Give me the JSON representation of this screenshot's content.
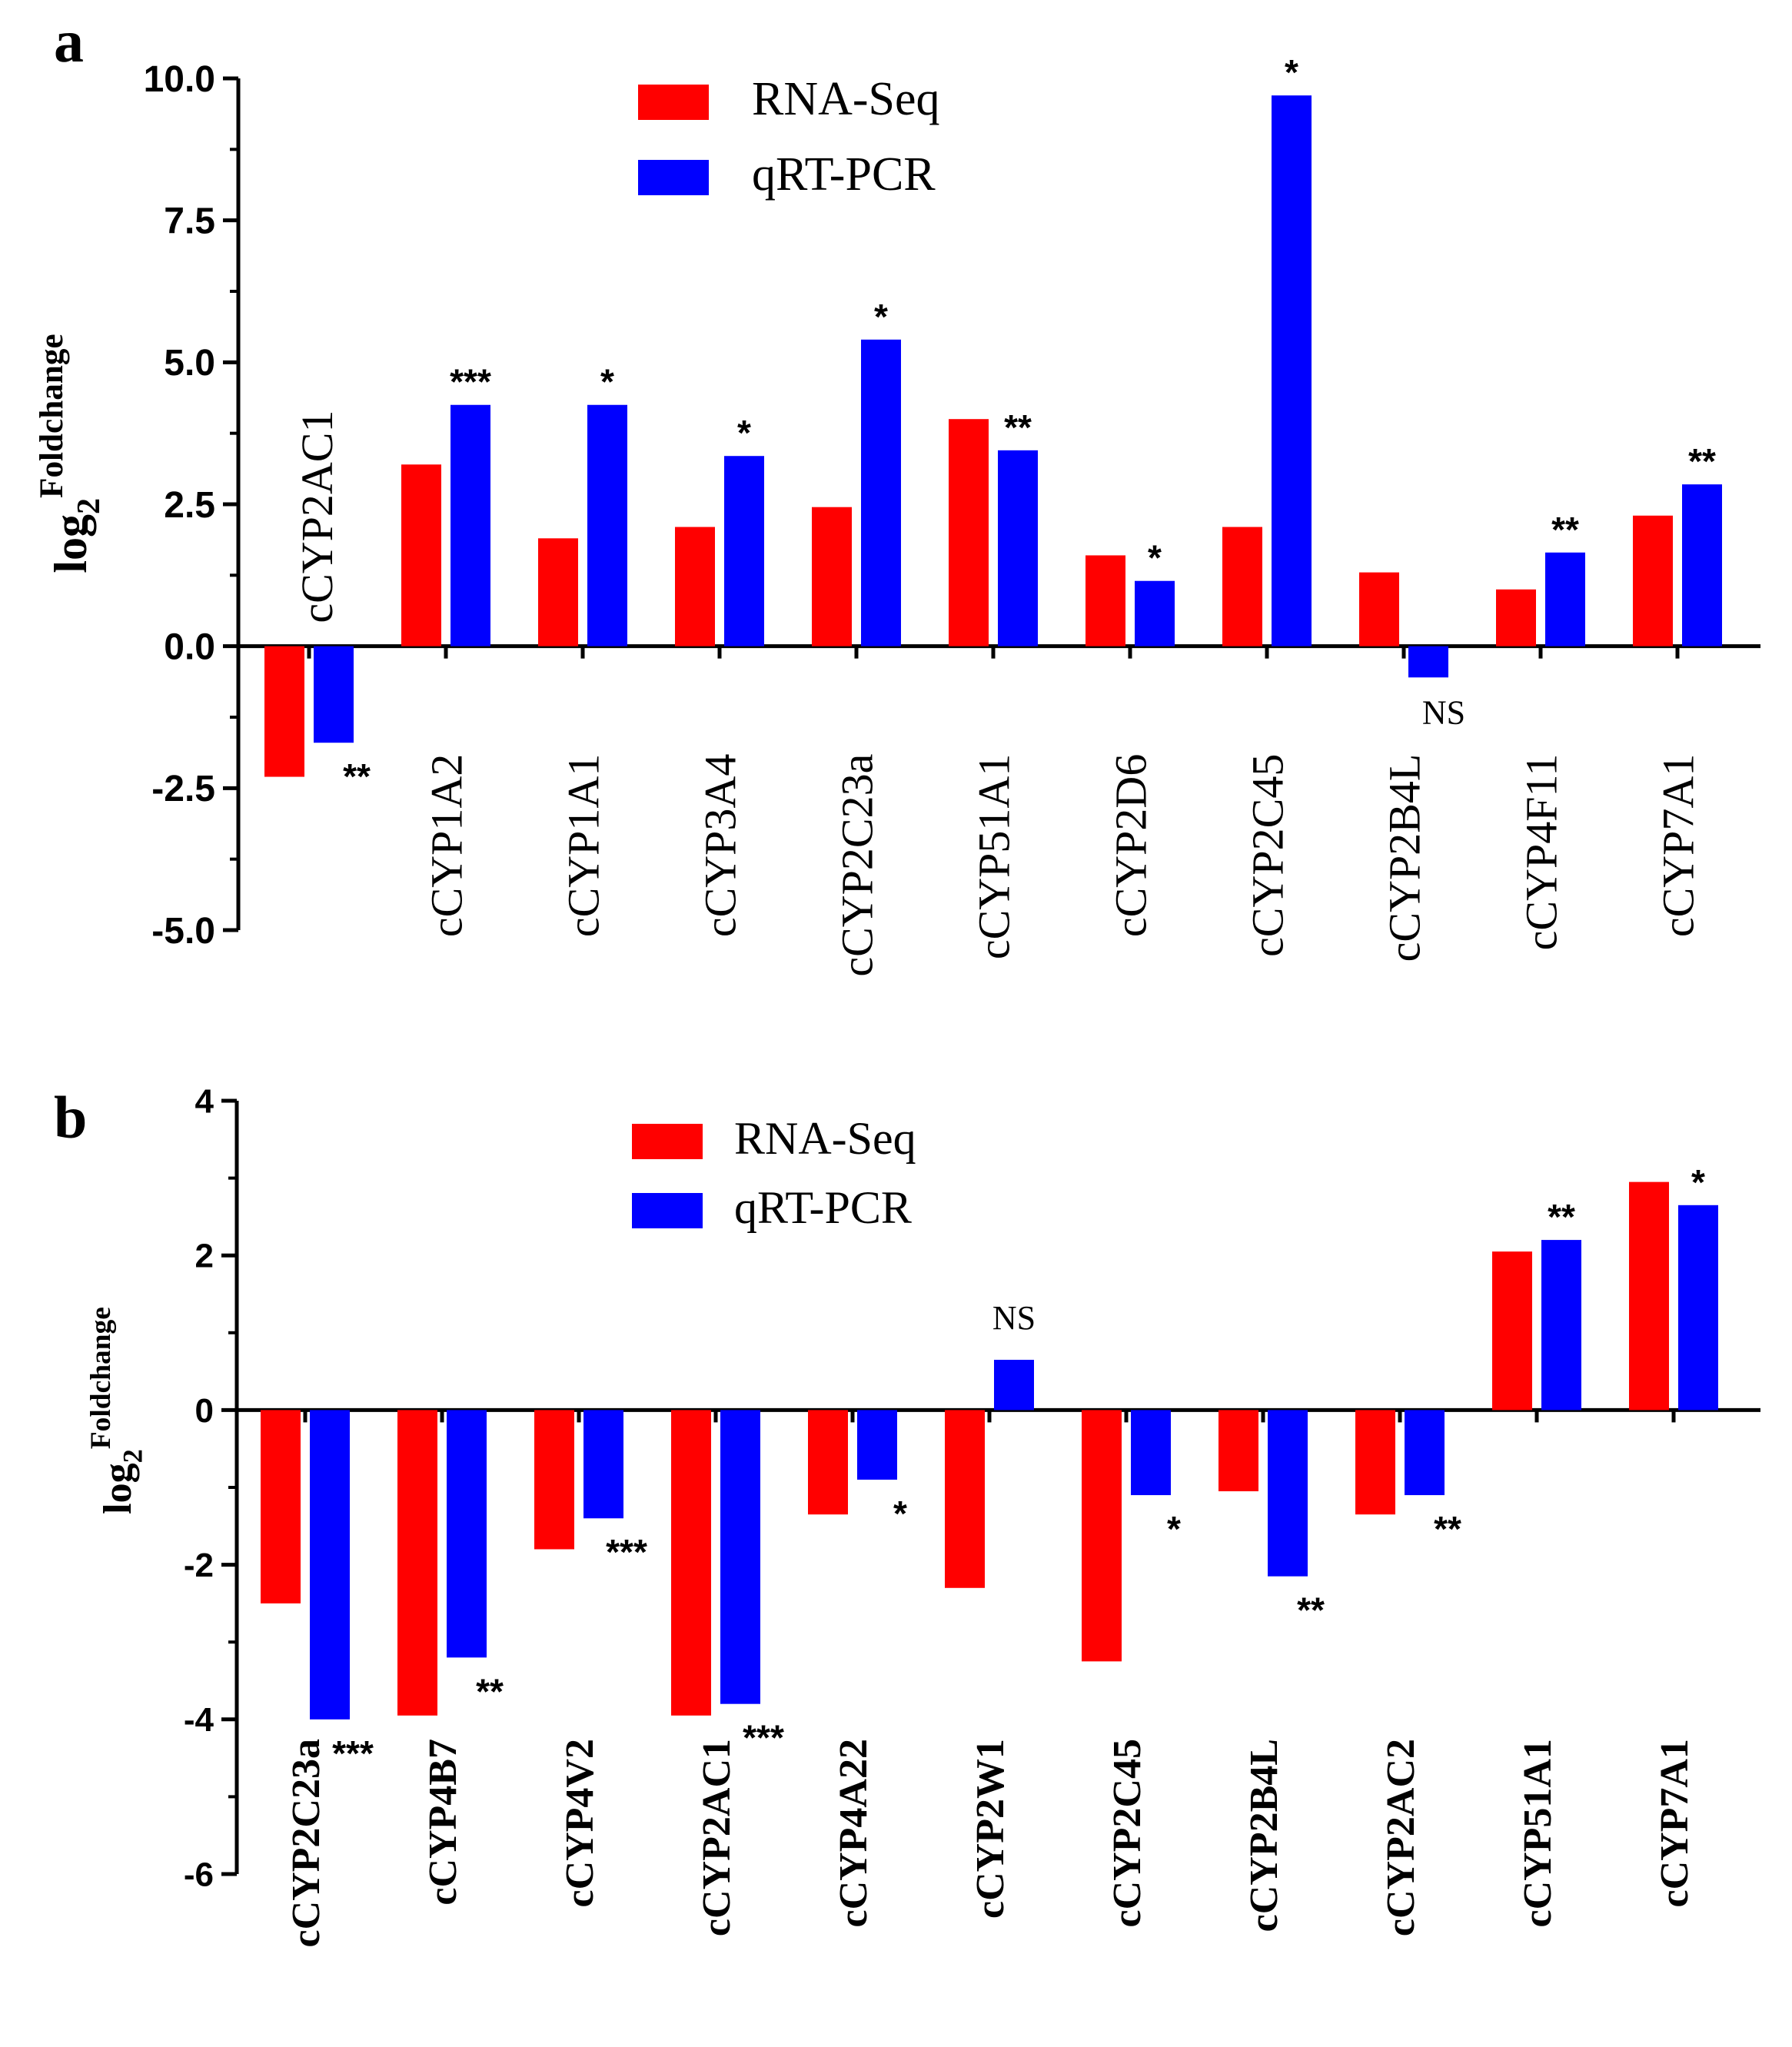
{
  "chart_data": [
    {
      "type": "bar",
      "panel": "a",
      "ylabel": "log2",
      "ylabel_sup": "Foldchange",
      "ylabel_sub": "2",
      "ylim": [
        -5.0,
        10.0
      ],
      "yticks": [
        -5.0,
        -2.5,
        0.0,
        2.5,
        5.0,
        7.5,
        10.0
      ],
      "ytick_labels": [
        "-5.0",
        "-2.5",
        "0.0",
        "2.5",
        "5.0",
        "7.5",
        "10.0"
      ],
      "categories": [
        "cCYP2AC1",
        "cCYP1A2",
        "cCYP1A1",
        "cCYP3A4",
        "cCYP2C23a",
        "cCYP51A1",
        "cCYP2D6",
        "cCYP2C45",
        "cCYP2B4L",
        "cCYP4F11",
        "cCYP7A1"
      ],
      "series": [
        {
          "name": "RNA-Seq",
          "color": "#ff0000",
          "values": [
            -2.3,
            3.2,
            1.9,
            2.1,
            2.45,
            4.0,
            1.6,
            2.1,
            1.3,
            1.0,
            2.3
          ]
        },
        {
          "name": "qRT-PCR",
          "color": "#0000ff",
          "values": [
            -1.7,
            4.25,
            4.25,
            3.35,
            5.4,
            3.45,
            1.15,
            9.7,
            -0.55,
            1.65,
            2.85
          ]
        }
      ],
      "significance": [
        "**",
        "***",
        "*",
        "*",
        "*",
        "**",
        "*",
        "*",
        "NS",
        "**",
        "**"
      ],
      "legend": [
        "RNA-Seq",
        "qRT-PCR"
      ],
      "legend_position": "top-center",
      "category_label_font": "serif",
      "grid": false
    },
    {
      "type": "bar",
      "panel": "b",
      "ylabel": "log2",
      "ylabel_sup": "Foldchange",
      "ylabel_sub": "2",
      "ylim": [
        -6,
        4
      ],
      "yticks": [
        -6,
        -4,
        -2,
        0,
        2,
        4
      ],
      "ytick_labels": [
        "-6",
        "-4",
        "-2",
        "0",
        "2",
        "4"
      ],
      "categories": [
        "cCYP2C23a",
        "cCYP4B7",
        "cCYP4V2",
        "cCYP2AC1",
        "cCYP4A22",
        "cCYP2W1",
        "cCYP2C45",
        "cCYP2B4L",
        "cCYP2AC2",
        "cCYP51A1",
        "cCYP7A1"
      ],
      "series": [
        {
          "name": "RNA-Seq",
          "color": "#ff0000",
          "values": [
            -2.5,
            -3.95,
            -1.8,
            -3.95,
            -1.35,
            -2.3,
            -3.25,
            -1.05,
            -1.35,
            2.05,
            2.95
          ]
        },
        {
          "name": "qRT-PCR",
          "color": "#0000ff",
          "values": [
            -4.0,
            -3.2,
            -1.4,
            -3.8,
            -0.9,
            0.65,
            -1.1,
            -2.15,
            -1.1,
            2.2,
            2.65
          ]
        }
      ],
      "significance": [
        "***",
        "**",
        "***",
        "***",
        "*",
        "NS",
        "*",
        "**",
        "**",
        "**",
        "*"
      ],
      "legend": [
        "RNA-Seq",
        "qRT-PCR"
      ],
      "legend_position": "top-center",
      "category_label_font": "bold-serif",
      "grid": false
    }
  ]
}
